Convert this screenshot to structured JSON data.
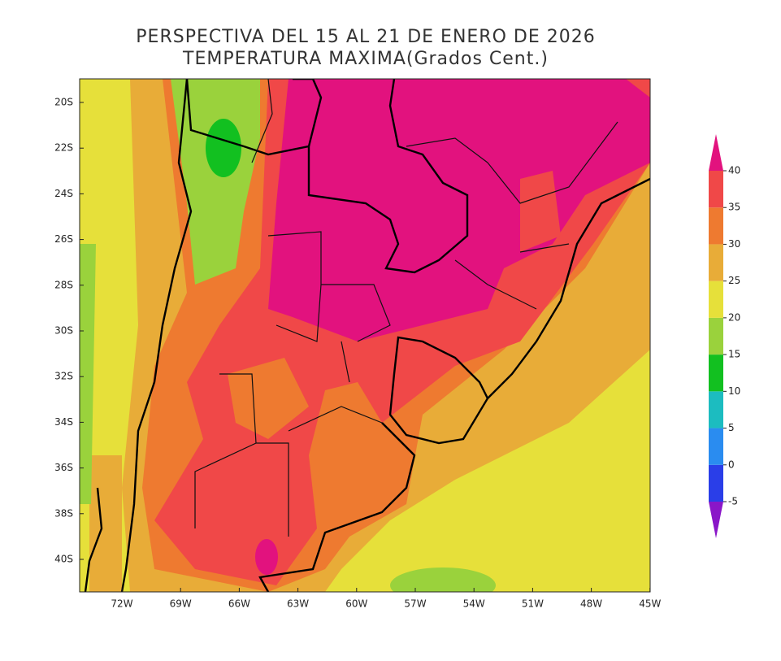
{
  "header": {
    "title": "PERSPECTIVA DEL 15 AL 21 DE ENERO DE 2026",
    "subtitle": "TEMPERATURA MAXIMA(Grados Cent.)"
  },
  "map": {
    "lat_labels": [
      "20S",
      "22S",
      "24S",
      "26S",
      "28S",
      "30S",
      "32S",
      "34S",
      "36S",
      "38S",
      "40S"
    ],
    "lon_labels": [
      "72W",
      "69W",
      "66W",
      "63W",
      "60W",
      "57W",
      "54W",
      "51W",
      "48W",
      "45W"
    ]
  },
  "colorbar": {
    "levels": [
      -5,
      0,
      5,
      10,
      15,
      20,
      25,
      30,
      35,
      40
    ],
    "colors": [
      "#8a16c8",
      "#2a3ee8",
      "#2a8cf0",
      "#1cbcc0",
      "#12c020",
      "#9ad23c",
      "#e6e03a",
      "#e8ac38",
      "#ee7a30",
      "#f04848",
      "#e2127e"
    ]
  }
}
